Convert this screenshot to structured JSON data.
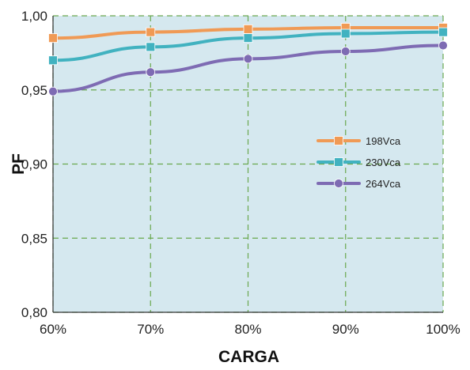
{
  "chart_data": {
    "type": "line",
    "xlabel": "CARGA",
    "ylabel": "PF",
    "categories": [
      "60%",
      "70%",
      "80%",
      "90%",
      "100%"
    ],
    "y_ticks": [
      "0,80",
      "0,85",
      "0,90",
      "0,95",
      "1,00"
    ],
    "ylim": [
      0.8,
      1.0
    ],
    "grid": "dashed",
    "legend_position": "right",
    "background_color": "#d5e8ef",
    "grid_color": "#6aa84f",
    "series": [
      {
        "name": "198Vca",
        "color": "#f09a55",
        "marker": "square",
        "values": [
          0.985,
          0.989,
          0.991,
          0.992,
          0.992
        ]
      },
      {
        "name": "230Vca",
        "color": "#41b2c0",
        "marker": "square",
        "values": [
          0.97,
          0.979,
          0.985,
          0.988,
          0.989
        ]
      },
      {
        "name": "264Vca",
        "color": "#7e6bb3",
        "marker": "circle",
        "values": [
          0.949,
          0.962,
          0.971,
          0.976,
          0.98
        ]
      }
    ]
  }
}
